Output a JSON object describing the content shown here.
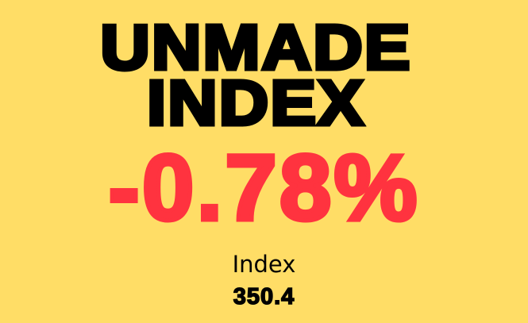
{
  "title_line1": "UNMADE",
  "title_line2": "INDEX",
  "change": "-0.78%",
  "index_label": "Index",
  "index_value": "350.4",
  "colors": {
    "background": "#FFDD66",
    "change": "#FF333F",
    "text": "#000000"
  }
}
